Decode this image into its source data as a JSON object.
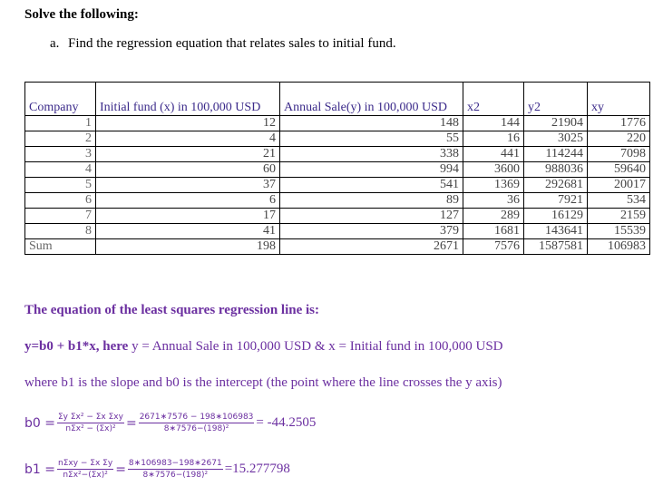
{
  "header": {
    "title": "Solve the following:"
  },
  "question": {
    "label": "a.",
    "text": "Find the regression equation that relates sales to initial fund."
  },
  "table": {
    "headers": [
      "Company",
      "Initial fund (x) in 100,000 USD",
      "Annual Sale(y) in 100,000 USD",
      "x2",
      "y2",
      "xy"
    ],
    "rows": [
      [
        1,
        12,
        148,
        144,
        21904,
        1776
      ],
      [
        2,
        4,
        55,
        16,
        3025,
        220
      ],
      [
        3,
        21,
        338,
        441,
        114244,
        7098
      ],
      [
        4,
        60,
        994,
        3600,
        988036,
        59640
      ],
      [
        5,
        37,
        541,
        1369,
        292681,
        20017
      ],
      [
        6,
        6,
        89,
        36,
        7921,
        534
      ],
      [
        7,
        17,
        127,
        289,
        16129,
        2159
      ],
      [
        8,
        41,
        379,
        1681,
        143641,
        15539
      ]
    ],
    "sum": [
      "Sum",
      198,
      2671,
      7576,
      1587581,
      106983
    ]
  },
  "explanation": {
    "heading": "The equation of the least squares regression line is:",
    "equation_bold": "y=b0 + b1*x, here",
    "equation_rest": "y = Annual Sale in 100,000 USD & x = Initial fund in 100,000 USD",
    "slope_note": "where b1 is the slope and b0 is the intercept (the point where the line crosses the y axis)"
  },
  "formulas": [
    {
      "lhs": "b0 =",
      "num": "Σy Σx² − Σx Σxy",
      "den": "nΣx² − (Σx)²",
      "eq": "=",
      "num2": "2671∗7576 − 198∗106983",
      "den2": "8∗7576−(198)²",
      "result": "= -44.2505"
    },
    {
      "lhs": "b1 =",
      "num": "nΣxy − Σx Σy",
      "den": "nΣx²−(Σx)²",
      "eq": "=",
      "num2": "8∗106983−198∗2671",
      "den2": "8∗7576−(198)²",
      "result": "=15.277798"
    }
  ]
}
